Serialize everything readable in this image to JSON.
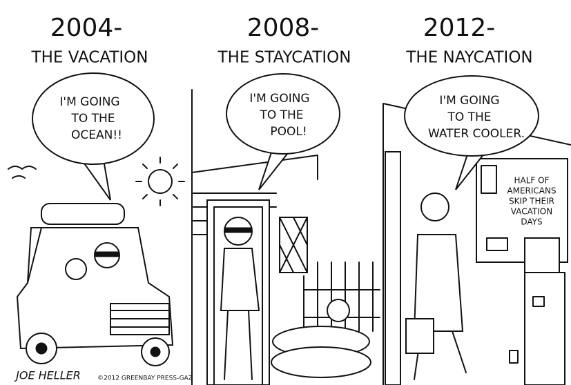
{
  "panels": [
    {
      "year": "2004-",
      "title": "THE VACATION",
      "speech": [
        "I'M GOING",
        "TO THE",
        "OCEAN!!"
      ]
    },
    {
      "year": "2008-",
      "title": "THE STAYCATION",
      "speech": [
        "I'M GOING",
        "TO THE",
        "POOL!"
      ]
    },
    {
      "year": "2012-",
      "title": "THE NAYCATION",
      "speech": [
        "I'M GOING",
        "TO THE",
        "WATER COOLER."
      ]
    }
  ],
  "poster": [
    "HALF OF",
    "AMERICANS",
    "SKIP THEIR",
    "VACATION",
    "DAYS"
  ],
  "signature": "JOE HELLER",
  "credit": "©2012 GREENBAY PRESS-GAZ"
}
